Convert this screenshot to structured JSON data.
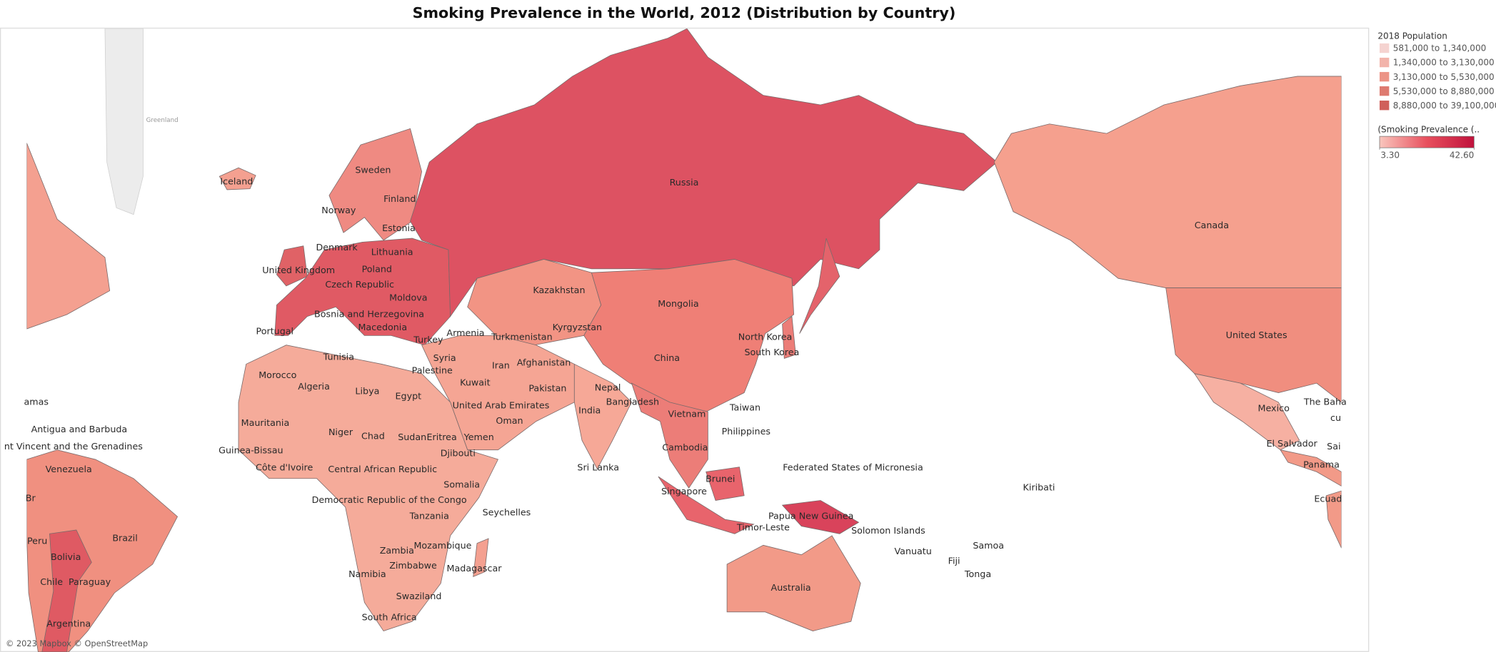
{
  "title": "Smoking Prevalence in the World, 2012 (Distribution by Country)",
  "map": {
    "attribution": "© 2023 Mapbox © OpenStreetMap",
    "background_labels": [
      "Greenland"
    ],
    "country_labels": [
      "Russia",
      "Sweden",
      "Finland",
      "Iceland",
      "Norway",
      "Estonia",
      "Denmark",
      "Lithuania",
      "United Kingdom",
      "Poland",
      "Czech Republic",
      "Moldova",
      "Bosnia and Herzegovina",
      "Macedonia",
      "Portugal",
      "Armenia",
      "Turkey",
      "Kazakhstan",
      "Mongolia",
      "Turkmenistan",
      "Kyrgyzstan",
      "North Korea",
      "South Korea",
      "Tunisia",
      "Syria",
      "Palestine",
      "Iran",
      "Afghanistan",
      "China",
      "Morocco",
      "Algeria",
      "Libya",
      "Egypt",
      "Kuwait",
      "Pakistan",
      "Nepal",
      "United Arab Emirates",
      "India",
      "Bangladesh",
      "Taiwan",
      "Vietnam",
      "Oman",
      "Mauritania",
      "Niger",
      "Chad",
      "Sudan",
      "Eritrea",
      "Yemen",
      "Philippines",
      "Guinea-Bissau",
      "Cambodia",
      "Djibouti",
      "Côte d'Ivoire",
      "Central African Republic",
      "Sri Lanka",
      "Federated States of Micronesia",
      "Brunei",
      "Somalia",
      "Singapore",
      "Kiribati",
      "Democratic Republic of the Congo",
      "Seychelles",
      "Tanzania",
      "Papua New Guinea",
      "Timor-Leste",
      "Solomon Islands",
      "Zambia",
      "Mozambique",
      "Samoa",
      "Vanuatu",
      "Zimbabwe",
      "Fiji",
      "Madagascar",
      "Namibia",
      "Tonga",
      "Paraguay",
      "Chile",
      "Australia",
      "Swaziland",
      "South Africa",
      "Argentina",
      "Bolivia",
      "Peru",
      "Brazil",
      "Venezuela",
      "Antigua and Barbuda",
      "nt Vincent and the Grenadines",
      "amas",
      "Mexico",
      "El Salvador",
      "Panama",
      "United States",
      "Canada",
      "The Baha",
      "Ecuad",
      "cu",
      "Sai",
      "Br"
    ]
  },
  "legend": {
    "population": {
      "title": "2018 Population",
      "entries": [
        {
          "label": "581,000 to 1,340,000",
          "color": "#f5d3d0"
        },
        {
          "label": "1,340,000 to 3,130,000",
          "color": "#f2b3aa"
        },
        {
          "label": "3,130,000 to 5,530,000",
          "color": "#ec9486"
        },
        {
          "label": "5,530,000 to 8,880,000",
          "color": "#de7a6f"
        },
        {
          "label": "8,880,000 to 39,100,000",
          "color": "#d0605a"
        }
      ]
    },
    "prevalence": {
      "title": "(Smoking Prevalence (..",
      "min": {
        "value": 3.3,
        "label": "3.30"
      },
      "max": {
        "value": 42.6,
        "label": "42.60"
      },
      "colors": [
        "#f9c6bd",
        "#e8505e",
        "#c0123c"
      ]
    }
  }
}
